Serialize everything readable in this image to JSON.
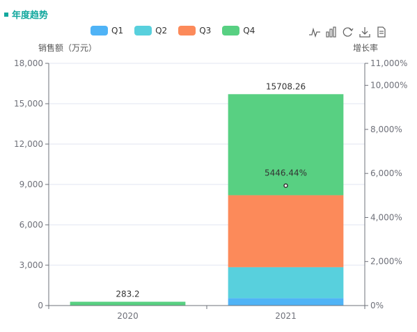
{
  "header": {
    "title": "年度趋势"
  },
  "toolbox": [
    "line-chart-icon",
    "bar-chart-icon",
    "refresh-icon",
    "download-icon",
    "data-view-icon"
  ],
  "colors": {
    "Q1": "#4fb3f6",
    "Q2": "#58d0dd",
    "Q3": "#fc8a5a",
    "Q4": "#58d082",
    "line": "#333333",
    "header": "#13a89e"
  },
  "chart_data": {
    "type": "bar",
    "stacked": true,
    "categories": [
      "2020",
      "2021"
    ],
    "series": [
      {
        "name": "Q1",
        "values": [
          0,
          550
        ]
      },
      {
        "name": "Q2",
        "values": [
          0,
          2300
        ]
      },
      {
        "name": "Q3",
        "values": [
          0,
          5350
        ]
      },
      {
        "name": "Q4",
        "values": [
          283.2,
          7508.26
        ]
      }
    ],
    "totals": [
      "283.2",
      "15708.26"
    ],
    "growth_line": {
      "values": [
        null,
        5446.44
      ],
      "labels": [
        "",
        "5446.44%"
      ]
    },
    "ylabel": "销售额（万元）",
    "y2label": "增长率",
    "ylim": [
      0,
      18000
    ],
    "y2lim": [
      0,
      11000
    ],
    "y_ticks": [
      "0",
      "3,000",
      "6,000",
      "9,000",
      "12,000",
      "15,000",
      "18,000"
    ],
    "y2_ticks": [
      "0%",
      "2,000%",
      "4,000%",
      "6,000%",
      "8,000%",
      "10,000%",
      "11,000%"
    ],
    "grid": true,
    "legend_position": "top-center"
  }
}
